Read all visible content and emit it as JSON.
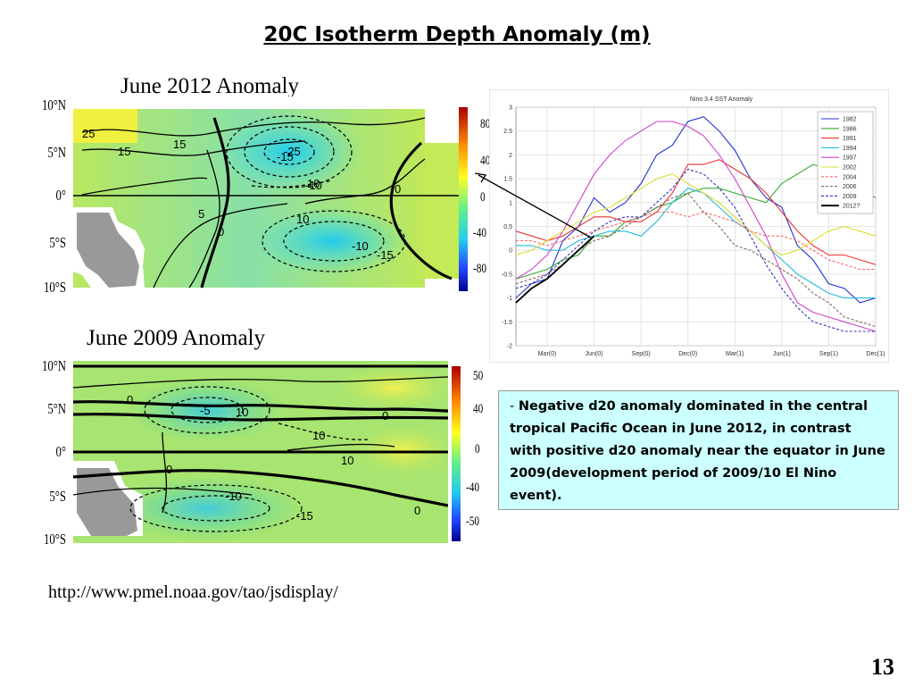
{
  "slide": {
    "title": "20C Isotherm Depth Anomaly (m)",
    "page_number": "13",
    "source_url": "http://www.pmel.noaa.gov/tao/jsdisplay/",
    "note_dash": "- ",
    "note": "Negative d20 anomaly dominated in the central tropical Pacific Ocean in June 2012, in contrast with positive d20 anomaly near the equator in June 2009(development period of 2009/10 El Nino event)."
  },
  "maps": {
    "map2012": {
      "title": "June 2012 Anomaly",
      "lat_labels": [
        "10°N",
        "5°N",
        "0°",
        "5°S",
        "10°S"
      ],
      "colorbar_labels": [
        "80",
        "40",
        "0",
        "-40",
        "-80"
      ],
      "contour_labels": [
        "25",
        "15",
        "15",
        "10",
        "10",
        "5",
        "0",
        "0",
        "-10",
        "-10",
        "-15",
        "-15",
        "-25"
      ]
    },
    "map2009": {
      "title": "June 2009 Anomaly",
      "lat_labels": [
        "10°N",
        "5°N",
        "0°",
        "5°S",
        "10°S"
      ],
      "colorbar_labels": [
        "50",
        "40",
        "0",
        "-40",
        "-50"
      ],
      "contour_labels": [
        "0",
        "0",
        "0",
        "0",
        "-5",
        "10",
        "10",
        "10",
        "-10",
        "-15"
      ]
    }
  },
  "chart_data": {
    "type": "line",
    "title": "Nino 3.4 SST Anomaly",
    "x_tick_labels": [
      "Mar(0)",
      "Jun(0)",
      "Sep(0)",
      "Dec(0)",
      "Mar(1)",
      "Jun(1)",
      "Sep(1)",
      "Dec(1)"
    ],
    "x": [
      "Jan(0)",
      "Feb(0)",
      "Mar(0)",
      "Apr(0)",
      "May(0)",
      "Jun(0)",
      "Jul(0)",
      "Aug(0)",
      "Sep(0)",
      "Oct(0)",
      "Nov(0)",
      "Dec(0)",
      "Jan(1)",
      "Feb(1)",
      "Mar(1)",
      "Apr(1)",
      "May(1)",
      "Jun(1)",
      "Jul(1)",
      "Aug(1)",
      "Sep(1)",
      "Oct(1)",
      "Nov(1)",
      "Dec(1)"
    ],
    "ylim": [
      -2,
      3
    ],
    "y_ticks": [
      -2,
      -1.5,
      -1,
      -0.5,
      0,
      0.5,
      1,
      1.5,
      2,
      2.5,
      3
    ],
    "grid": true,
    "legend_position": "top-right",
    "series": [
      {
        "name": "1982",
        "color": "#2233cc",
        "dash": "solid",
        "values": [
          -1.0,
          -0.7,
          -0.6,
          0.2,
          0.5,
          1.1,
          0.8,
          1.0,
          1.4,
          2.0,
          2.2,
          2.7,
          2.8,
          2.5,
          2.1,
          1.5,
          1.1,
          0.9,
          0.1,
          -0.2,
          -0.7,
          -0.8,
          -1.1,
          -1.0
        ]
      },
      {
        "name": "1986",
        "color": "#33aa33",
        "dash": "solid",
        "values": [
          -0.6,
          -0.5,
          -0.4,
          -0.2,
          -0.1,
          0.3,
          0.3,
          0.6,
          0.7,
          0.9,
          1.0,
          1.2,
          1.3,
          1.3,
          1.2,
          1.1,
          1.0,
          1.4,
          1.6,
          1.8,
          1.7,
          1.5,
          1.3,
          1.1
        ]
      },
      {
        "name": "1991",
        "color": "#ee3333",
        "dash": "solid",
        "values": [
          0.4,
          0.3,
          0.2,
          0.3,
          0.5,
          0.7,
          0.7,
          0.6,
          0.6,
          0.8,
          1.2,
          1.8,
          1.8,
          1.9,
          1.7,
          1.5,
          1.2,
          0.8,
          0.4,
          0.1,
          -0.1,
          -0.1,
          -0.2,
          -0.3
        ]
      },
      {
        "name": "1994",
        "color": "#22bbdd",
        "dash": "solid",
        "values": [
          0.1,
          0.1,
          0.0,
          0.0,
          0.2,
          0.3,
          0.4,
          0.4,
          0.3,
          0.6,
          1.0,
          1.3,
          1.2,
          0.9,
          0.6,
          0.4,
          0.1,
          -0.2,
          -0.5,
          -0.7,
          -0.9,
          -1.0,
          -1.0,
          -1.0
        ]
      },
      {
        "name": "1997",
        "color": "#cc44cc",
        "dash": "solid",
        "values": [
          -0.6,
          -0.4,
          -0.1,
          0.4,
          1.0,
          1.6,
          2.0,
          2.3,
          2.5,
          2.7,
          2.7,
          2.6,
          2.4,
          2.0,
          1.5,
          0.9,
          0.3,
          -0.5,
          -1.1,
          -1.3,
          -1.4,
          -1.5,
          -1.6,
          -1.7
        ]
      },
      {
        "name": "2002",
        "color": "#dddd33",
        "dash": "solid",
        "values": [
          -0.1,
          0.0,
          0.2,
          0.4,
          0.6,
          0.8,
          0.9,
          1.1,
          1.3,
          1.5,
          1.6,
          1.4,
          1.2,
          1.0,
          0.7,
          0.4,
          0.1,
          -0.1,
          0.0,
          0.2,
          0.4,
          0.5,
          0.4,
          0.3
        ]
      },
      {
        "name": "2004",
        "color": "#ff6666",
        "dash": "dashed",
        "values": [
          0.2,
          0.2,
          0.1,
          0.2,
          0.3,
          0.4,
          0.5,
          0.6,
          0.7,
          0.8,
          0.8,
          0.7,
          0.8,
          0.7,
          0.6,
          0.4,
          0.3,
          0.3,
          0.2,
          0.0,
          -0.2,
          -0.3,
          -0.4,
          -0.4
        ]
      },
      {
        "name": "2006",
        "color": "#886655",
        "dash": "dashed",
        "values": [
          -0.7,
          -0.6,
          -0.5,
          -0.3,
          0.0,
          0.2,
          0.3,
          0.5,
          0.7,
          0.9,
          1.1,
          1.2,
          0.8,
          0.5,
          0.1,
          0.0,
          -0.2,
          -0.4,
          -0.6,
          -0.9,
          -1.1,
          -1.4,
          -1.5,
          -1.6
        ]
      },
      {
        "name": "2009",
        "color": "#3333bb",
        "dash": "dashed",
        "values": [
          -0.8,
          -0.7,
          -0.5,
          -0.2,
          0.1,
          0.4,
          0.6,
          0.7,
          0.7,
          1.0,
          1.3,
          1.7,
          1.6,
          1.3,
          0.9,
          0.3,
          -0.3,
          -0.8,
          -1.2,
          -1.5,
          -1.6,
          -1.7,
          -1.7,
          -1.7
        ]
      },
      {
        "name": "2012?",
        "color": "#000000",
        "dash": "solid",
        "values": [
          -1.1,
          -0.8,
          -0.6,
          -0.3,
          0.0,
          0.3,
          null,
          null,
          null,
          null,
          null,
          null,
          null,
          null,
          null,
          null,
          null,
          null,
          null,
          null,
          null,
          null,
          null,
          null
        ]
      }
    ]
  }
}
